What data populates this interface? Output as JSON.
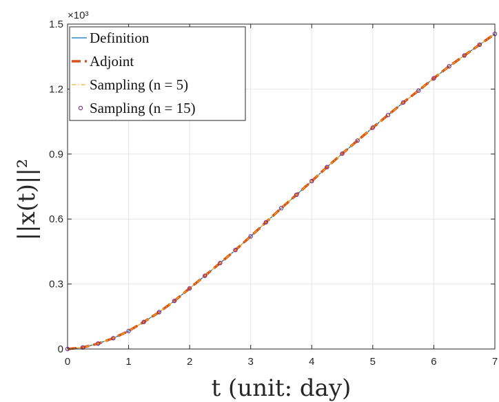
{
  "chart_data": {
    "type": "line",
    "xlabel": "t (unit: day)",
    "ylabel": "||x(t)||²",
    "y_exponent_label": "×10³",
    "xlim": [
      0,
      7
    ],
    "ylim": [
      0,
      1.5
    ],
    "x_ticks": [
      "0",
      "1",
      "2",
      "3",
      "4",
      "5",
      "6",
      "7"
    ],
    "y_ticks": [
      "0",
      "0.3",
      "0.6",
      "0.9",
      "1.2",
      "1.5"
    ],
    "grid": true,
    "legend_position": "top-left",
    "x": [
      0,
      0.25,
      0.5,
      0.75,
      1,
      1.25,
      1.5,
      1.75,
      2,
      2.25,
      2.5,
      2.75,
      3,
      3.25,
      3.5,
      3.75,
      4,
      4.25,
      4.5,
      4.75,
      5,
      5.25,
      5.5,
      5.75,
      6,
      6.25,
      6.5,
      6.75,
      7
    ],
    "series": [
      {
        "name": "Definition",
        "style": "solid-thin",
        "color": "#0072BD",
        "values": [
          0.0,
          0.007,
          0.025,
          0.05,
          0.083,
          0.125,
          0.17,
          0.222,
          0.28,
          0.338,
          0.397,
          0.457,
          0.52,
          0.585,
          0.65,
          0.712,
          0.775,
          0.84,
          0.902,
          0.962,
          1.022,
          1.08,
          1.138,
          1.193,
          1.25,
          1.305,
          1.355,
          1.405,
          1.455
        ]
      },
      {
        "name": "Adjoint",
        "style": "dashed-thick",
        "color": "#D95319",
        "values": [
          0.0,
          0.007,
          0.025,
          0.05,
          0.083,
          0.125,
          0.17,
          0.222,
          0.28,
          0.338,
          0.397,
          0.457,
          0.52,
          0.585,
          0.65,
          0.712,
          0.775,
          0.84,
          0.902,
          0.962,
          1.022,
          1.08,
          1.138,
          1.193,
          1.25,
          1.305,
          1.355,
          1.405,
          1.455
        ]
      },
      {
        "name": "Sampling (n = 5)",
        "style": "dashdot-thin",
        "color": "#EDB120",
        "values": [
          0.0,
          0.007,
          0.025,
          0.05,
          0.083,
          0.125,
          0.17,
          0.222,
          0.28,
          0.338,
          0.397,
          0.457,
          0.52,
          0.585,
          0.65,
          0.712,
          0.775,
          0.84,
          0.902,
          0.962,
          1.022,
          1.08,
          1.138,
          1.193,
          1.25,
          1.305,
          1.355,
          1.405,
          1.455
        ]
      },
      {
        "name": "Sampling (n = 15)",
        "style": "markers",
        "color": "#7E2F8E",
        "values": [
          0.0,
          0.007,
          0.025,
          0.05,
          0.083,
          0.125,
          0.17,
          0.222,
          0.28,
          0.338,
          0.397,
          0.457,
          0.52,
          0.585,
          0.65,
          0.712,
          0.775,
          0.84,
          0.902,
          0.962,
          1.022,
          1.08,
          1.138,
          1.193,
          1.25,
          1.305,
          1.355,
          1.405,
          1.455
        ]
      }
    ],
    "colors": {
      "grid": "#e6e6e6",
      "axis": "#262626",
      "line_green": "#77AC30"
    }
  }
}
